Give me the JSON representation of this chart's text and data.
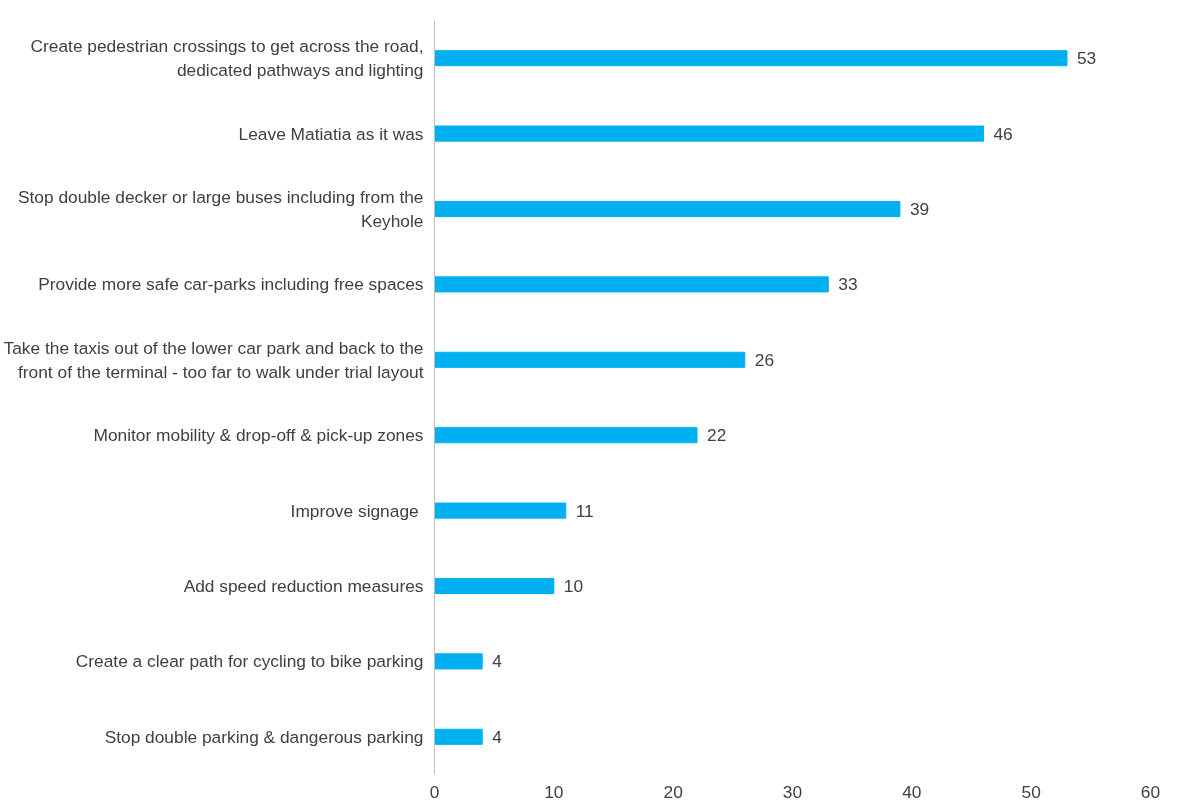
{
  "chart_data": {
    "type": "bar",
    "orientation": "horizontal",
    "categories": [
      "Create pedestrian crossings to get across the road, dedicated pathways and lighting",
      "Leave Matiatia as it was",
      "Stop double decker or large buses including from the Keyhole",
      "Provide more safe car-parks including free spaces",
      "Take the taxis out of the lower car park and back to the front of the terminal - too far to walk under trial layout",
      "Monitor mobility & drop-off & pick-up zones",
      "Improve  signage",
      "Add speed reduction measures",
      "Create a clear path for cycling to bike parking",
      "Stop double parking & dangerous parking"
    ],
    "values": [
      53,
      46,
      39,
      33,
      26,
      22,
      11,
      10,
      4,
      4
    ],
    "color": "#00b0f0",
    "data_labels": true,
    "xlim": [
      0,
      60
    ],
    "xticks": [
      0,
      10,
      20,
      30,
      40,
      50,
      60
    ]
  }
}
